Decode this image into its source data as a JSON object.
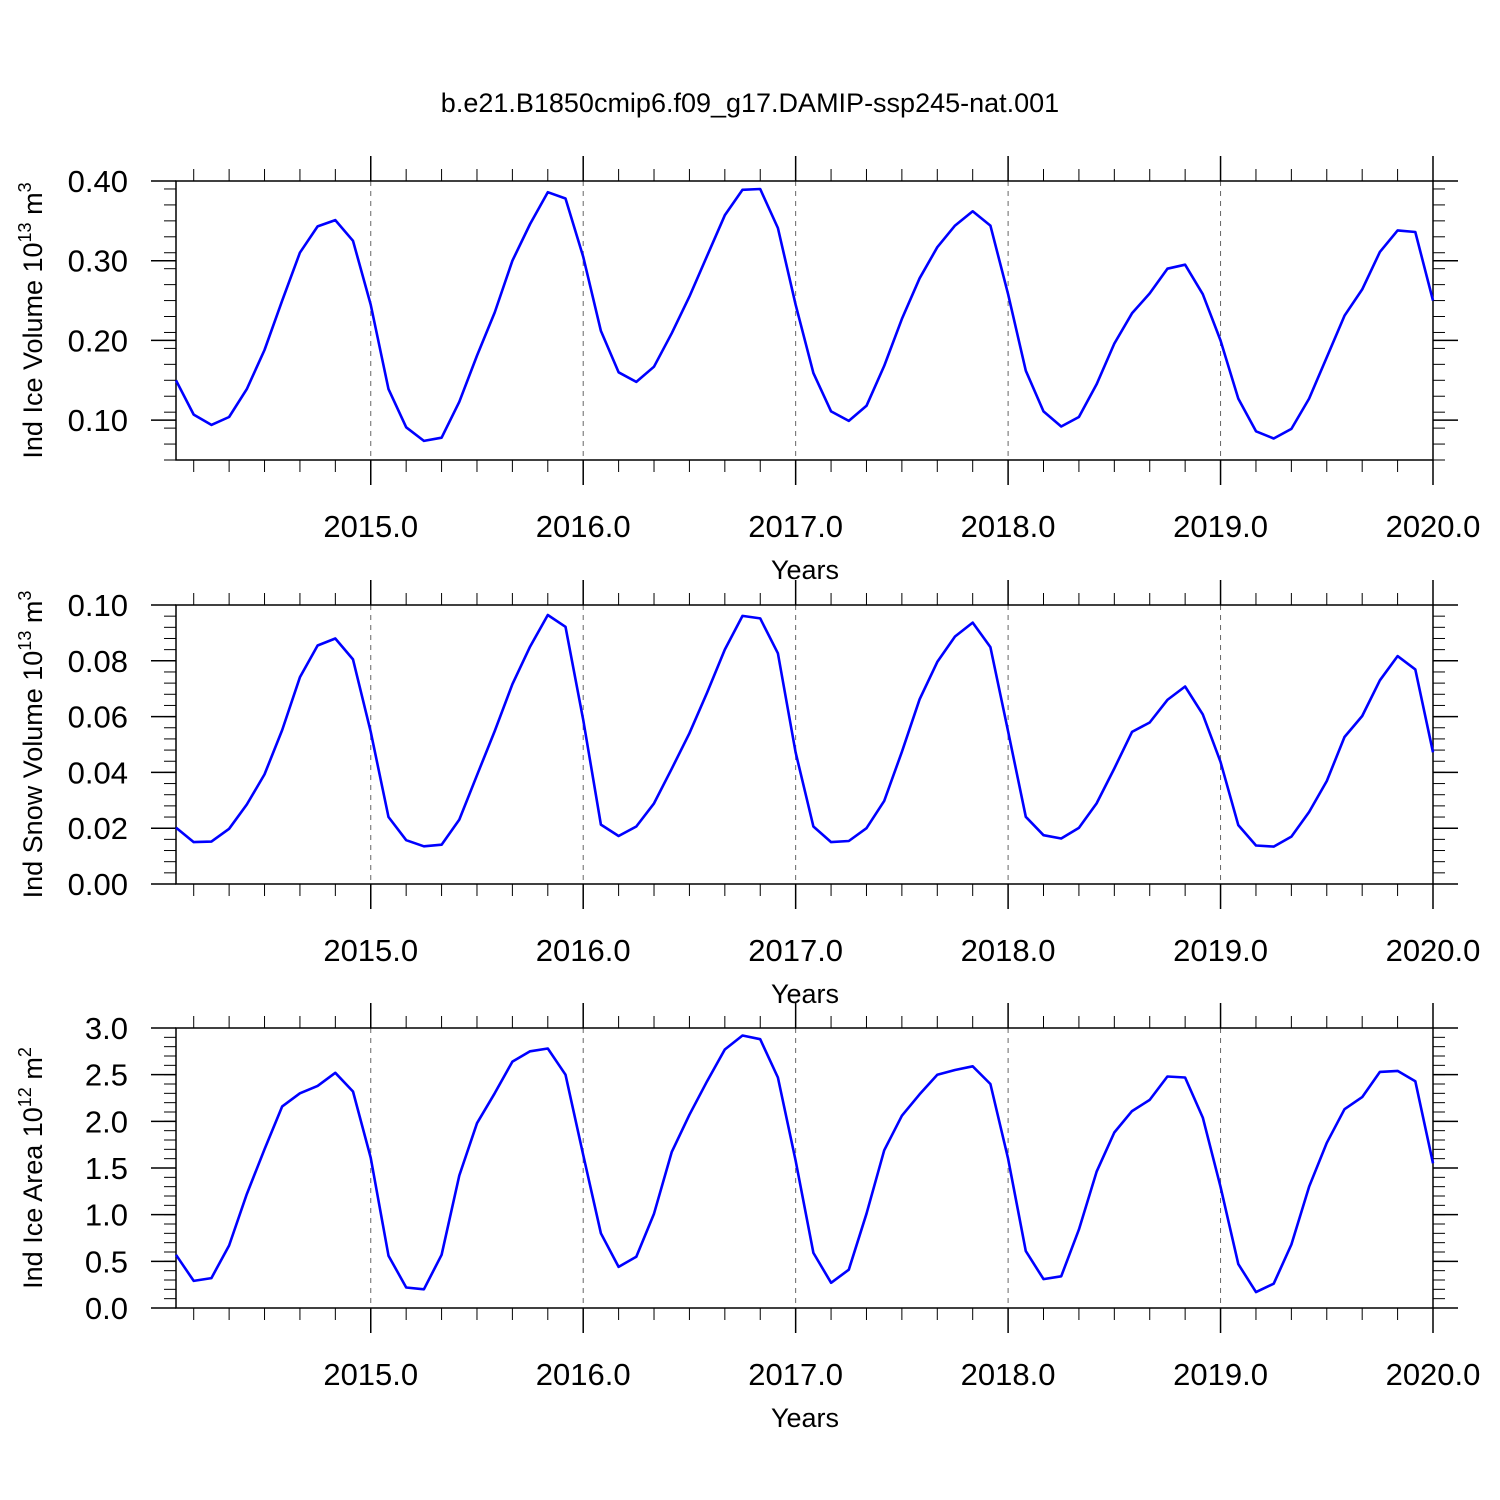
{
  "title": "b.e21.B1850cmip6.f09_g17.DAMIP-ssp245-nat.001",
  "colors": {
    "line": "#0000ff",
    "axis": "#000000",
    "grid": "#666666"
  },
  "chart_data": [
    {
      "type": "line",
      "title": "",
      "xlabel": "Years",
      "ylabel": {
        "base": "Ind Ice Volume 10",
        "exp": "13",
        "unit": " m",
        "unit_exp": "3"
      },
      "xlim": [
        2014.0833,
        2020.0
      ],
      "ylim": [
        0.05,
        0.4
      ],
      "x_ticks": [
        2015.0,
        2016.0,
        2017.0,
        2018.0,
        2019.0,
        2020.0
      ],
      "x_tick_labels": [
        "2015.0",
        "2016.0",
        "2017.0",
        "2018.0",
        "2019.0",
        "2020.0"
      ],
      "y_ticks": [
        0.1,
        0.2,
        0.3,
        0.4
      ],
      "y_tick_labels": [
        "0.10",
        "0.20",
        "0.30",
        "0.40"
      ],
      "grid": "vertical dashed at year ticks",
      "series": [
        {
          "color": "#0000ff",
          "values": [
            0.15,
            0.107,
            0.094,
            0.104,
            0.139,
            0.188,
            0.25,
            0.31,
            0.343,
            0.351,
            0.325,
            0.245,
            0.139,
            0.091,
            0.074,
            0.078,
            0.123,
            0.181,
            0.235,
            0.3,
            0.346,
            0.386,
            0.378,
            0.305,
            0.212,
            0.16,
            0.148,
            0.167,
            0.209,
            0.255,
            0.306,
            0.357,
            0.389,
            0.39,
            0.341,
            0.245,
            0.159,
            0.111,
            0.099,
            0.118,
            0.168,
            0.227,
            0.278,
            0.317,
            0.344,
            0.362,
            0.344,
            0.258,
            0.162,
            0.111,
            0.092,
            0.104,
            0.145,
            0.196,
            0.234,
            0.259,
            0.29,
            0.295,
            0.258,
            0.2,
            0.127,
            0.086,
            0.077,
            0.089,
            0.127,
            0.179,
            0.231,
            0.264,
            0.311,
            0.338,
            0.336,
            0.25
          ]
        }
      ]
    },
    {
      "type": "line",
      "title": "",
      "xlabel": "Years",
      "ylabel": {
        "base": "Ind Snow Volume 10",
        "exp": "13",
        "unit": " m",
        "unit_exp": "3"
      },
      "xlim": [
        2014.0833,
        2020.0
      ],
      "ylim": [
        0.0,
        0.1
      ],
      "x_ticks": [
        2015.0,
        2016.0,
        2017.0,
        2018.0,
        2019.0,
        2020.0
      ],
      "x_tick_labels": [
        "2015.0",
        "2016.0",
        "2017.0",
        "2018.0",
        "2019.0",
        "2020.0"
      ],
      "y_ticks": [
        0.0,
        0.02,
        0.04,
        0.06,
        0.08,
        0.1
      ],
      "y_tick_labels": [
        "0.00",
        "0.02",
        "0.04",
        "0.06",
        "0.08",
        "0.10"
      ],
      "grid": "vertical dashed at year ticks",
      "series": [
        {
          "color": "#0000ff",
          "values": [
            0.0202,
            0.015,
            0.0152,
            0.0198,
            0.0285,
            0.0393,
            0.0552,
            0.0741,
            0.0855,
            0.088,
            0.0805,
            0.0546,
            0.024,
            0.0157,
            0.0135,
            0.0141,
            0.0231,
            0.039,
            0.0548,
            0.0716,
            0.0851,
            0.0964,
            0.0922,
            0.0589,
            0.0213,
            0.0172,
            0.0206,
            0.0289,
            0.0413,
            0.054,
            0.0686,
            0.084,
            0.0961,
            0.0952,
            0.0827,
            0.0472,
            0.0206,
            0.015,
            0.0154,
            0.02,
            0.0298,
            0.0474,
            0.0662,
            0.0796,
            0.0887,
            0.0937,
            0.0849,
            0.0547,
            0.0241,
            0.0175,
            0.0163,
            0.0201,
            0.0289,
            0.0414,
            0.0545,
            0.0579,
            0.066,
            0.0708,
            0.0608,
            0.0438,
            0.0211,
            0.0138,
            0.0134,
            0.017,
            0.0258,
            0.0369,
            0.0527,
            0.0602,
            0.073,
            0.0817,
            0.0769,
            0.0472
          ]
        }
      ]
    },
    {
      "type": "line",
      "title": "",
      "xlabel": "Years",
      "ylabel": {
        "base": "Ind Ice Area 10",
        "exp": "12",
        "unit": " m",
        "unit_exp": "2"
      },
      "xlim": [
        2014.0833,
        2020.0
      ],
      "ylim": [
        0.0,
        3.0
      ],
      "x_ticks": [
        2015.0,
        2016.0,
        2017.0,
        2018.0,
        2019.0,
        2020.0
      ],
      "x_tick_labels": [
        "2015.0",
        "2016.0",
        "2017.0",
        "2018.0",
        "2019.0",
        "2020.0"
      ],
      "y_ticks": [
        0.0,
        0.5,
        1.0,
        1.5,
        2.0,
        2.5,
        3.0
      ],
      "y_tick_labels": [
        "0.0",
        "0.5",
        "1.0",
        "1.5",
        "2.0",
        "2.5",
        "3.0"
      ],
      "grid": "vertical dashed at year ticks",
      "series": [
        {
          "color": "#0000ff",
          "values": [
            0.57,
            0.29,
            0.32,
            0.67,
            1.22,
            1.7,
            2.16,
            2.3,
            2.38,
            2.52,
            2.32,
            1.61,
            0.56,
            0.22,
            0.2,
            0.57,
            1.42,
            1.98,
            2.3,
            2.64,
            2.75,
            2.78,
            2.5,
            1.64,
            0.8,
            0.44,
            0.55,
            1.01,
            1.67,
            2.07,
            2.43,
            2.77,
            2.92,
            2.88,
            2.47,
            1.58,
            0.59,
            0.27,
            0.41,
            1.01,
            1.69,
            2.06,
            2.29,
            2.5,
            2.55,
            2.59,
            2.4,
            1.6,
            0.61,
            0.31,
            0.34,
            0.84,
            1.46,
            1.88,
            2.11,
            2.23,
            2.48,
            2.47,
            2.04,
            1.3,
            0.47,
            0.17,
            0.26,
            0.68,
            1.3,
            1.77,
            2.13,
            2.26,
            2.53,
            2.54,
            2.43,
            1.55
          ]
        }
      ]
    }
  ]
}
